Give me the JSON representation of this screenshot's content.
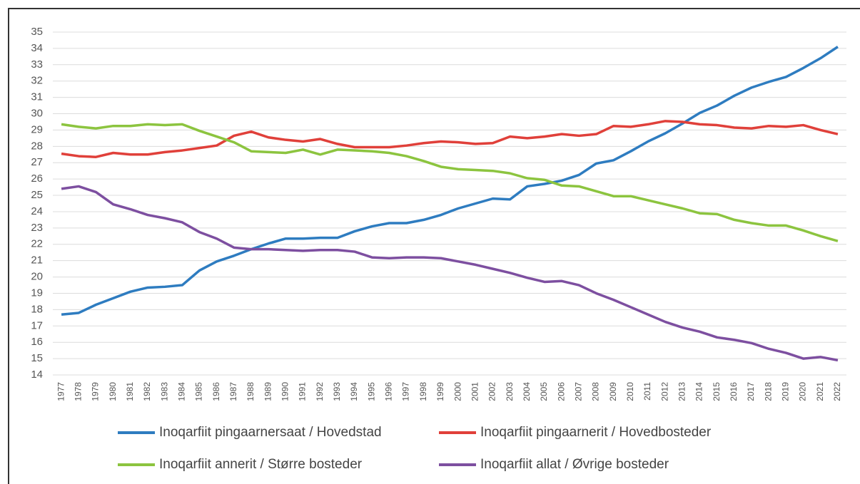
{
  "chart_data": {
    "type": "line",
    "categories": [
      "1977",
      "1978",
      "1979",
      "1980",
      "1981",
      "1982",
      "1983",
      "1984",
      "1985",
      "1986",
      "1987",
      "1988",
      "1989",
      "1990",
      "1991",
      "1992",
      "1993",
      "1994",
      "1995",
      "1996",
      "1997",
      "1998",
      "1999",
      "2000",
      "2001",
      "2002",
      "2003",
      "2004",
      "2005",
      "2006",
      "2007",
      "2008",
      "2009",
      "2010",
      "2011",
      "2012",
      "2013",
      "2014",
      "2015",
      "2016",
      "2017",
      "2018",
      "2019",
      "2020",
      "2021",
      "2022"
    ],
    "series": [
      {
        "name": "Inoqarfiit pingaarnersaat / Hovedstad",
        "color": "#2e7cc0",
        "values": [
          17.7,
          17.8,
          18.3,
          18.7,
          19.1,
          19.35,
          19.4,
          19.5,
          20.4,
          20.95,
          21.3,
          21.7,
          22.05,
          22.35,
          22.35,
          22.4,
          22.4,
          22.8,
          23.1,
          23.3,
          23.3,
          23.5,
          23.8,
          24.2,
          24.5,
          24.8,
          24.75,
          25.55,
          25.7,
          25.9,
          26.25,
          26.95,
          27.15,
          27.7,
          28.3,
          28.8,
          29.4,
          30.05,
          30.5,
          31.1,
          31.6,
          31.95,
          32.25,
          32.8,
          33.4,
          34.1
        ]
      },
      {
        "name": "Inoqarfiit pingaarnerit / Hovedbosteder",
        "color": "#e0403a",
        "values": [
          27.55,
          27.4,
          27.35,
          27.6,
          27.5,
          27.5,
          27.65,
          27.75,
          27.9,
          28.05,
          28.65,
          28.9,
          28.55,
          28.4,
          28.3,
          28.45,
          28.15,
          27.95,
          27.95,
          27.95,
          28.05,
          28.2,
          28.3,
          28.25,
          28.15,
          28.2,
          28.6,
          28.5,
          28.6,
          28.75,
          28.65,
          28.75,
          29.25,
          29.2,
          29.35,
          29.55,
          29.5,
          29.35,
          29.3,
          29.15,
          29.1,
          29.25,
          29.2,
          29.3,
          29.0,
          28.75
        ]
      },
      {
        "name": "Inoqarfiit annerit / Større bosteder",
        "color": "#8cc43f",
        "values": [
          29.35,
          29.2,
          29.1,
          29.25,
          29.25,
          29.35,
          29.3,
          29.35,
          28.95,
          28.6,
          28.25,
          27.7,
          27.65,
          27.6,
          27.8,
          27.5,
          27.8,
          27.75,
          27.7,
          27.6,
          27.4,
          27.1,
          26.75,
          26.6,
          26.55,
          26.5,
          26.35,
          26.05,
          25.95,
          25.6,
          25.55,
          25.25,
          24.95,
          24.95,
          24.7,
          24.45,
          24.2,
          23.9,
          23.85,
          23.5,
          23.3,
          23.15,
          23.15,
          22.85,
          22.5,
          22.2
        ]
      },
      {
        "name": "Inoqarfiit allat / Øvrige bosteder",
        "color": "#7d4fa0",
        "values": [
          25.4,
          25.55,
          25.2,
          24.45,
          24.15,
          23.8,
          23.6,
          23.35,
          22.75,
          22.35,
          21.8,
          21.7,
          21.7,
          21.65,
          21.6,
          21.65,
          21.65,
          21.55,
          21.2,
          21.15,
          21.2,
          21.2,
          21.15,
          20.95,
          20.75,
          20.5,
          20.25,
          19.95,
          19.7,
          19.75,
          19.5,
          19.0,
          18.6,
          18.15,
          17.7,
          17.25,
          16.9,
          16.65,
          16.3,
          16.15,
          15.95,
          15.6,
          15.35,
          15.0,
          15.1,
          14.9
        ]
      }
    ],
    "ylim": [
      14,
      35
    ],
    "yticks": [
      14,
      15,
      16,
      17,
      18,
      19,
      20,
      21,
      22,
      23,
      24,
      25,
      26,
      27,
      28,
      29,
      30,
      31,
      32,
      33,
      34,
      35
    ],
    "grid": true
  }
}
